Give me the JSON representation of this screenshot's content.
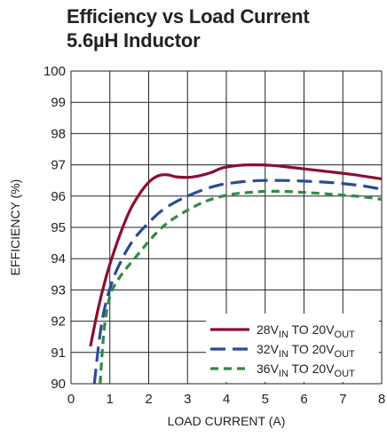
{
  "chart_data": {
    "type": "line",
    "title": "Efficiency vs Load Current",
    "subtitle": "5.6µH Inductor",
    "xlabel": "LOAD CURRENT (A)",
    "ylabel": "EFFICIENCY (%)",
    "xlim": [
      0,
      8
    ],
    "ylim": [
      90,
      100
    ],
    "xticks": [
      0,
      1,
      2,
      3,
      4,
      5,
      6,
      7,
      8
    ],
    "yticks": [
      90,
      91,
      92,
      93,
      94,
      95,
      96,
      97,
      98,
      99,
      100
    ],
    "grid": true,
    "legend_position": "bottom-right",
    "series": [
      {
        "name": "28V_IN TO 20V_OUT",
        "legend": {
          "a": "28V",
          "a_sub": "IN",
          "b": " TO 20V",
          "b_sub": "OUT"
        },
        "color": "#8b0f2e",
        "dash": "solid",
        "x": [
          0.5,
          0.7,
          0.9,
          1.1,
          1.3,
          1.5,
          1.7,
          1.9,
          2.1,
          2.3,
          2.5,
          2.7,
          3.0,
          3.3,
          3.6,
          3.9,
          4.3,
          4.7,
          5.2,
          5.8,
          6.5,
          7.2,
          8.0
        ],
        "y": [
          91.2,
          92.4,
          93.4,
          94.2,
          94.9,
          95.5,
          95.95,
          96.3,
          96.55,
          96.67,
          96.68,
          96.62,
          96.6,
          96.65,
          96.75,
          96.9,
          96.98,
          97.0,
          96.98,
          96.9,
          96.8,
          96.7,
          96.55
        ]
      },
      {
        "name": "32V_IN TO 20V_OUT",
        "legend": {
          "a": "32V",
          "a_sub": "IN",
          "b": " TO 20V",
          "b_sub": "OUT"
        },
        "color": "#2b4a9b",
        "dash": "long-dash",
        "x": [
          0.6,
          0.75,
          0.9,
          1.1,
          1.3,
          1.5,
          1.7,
          2.0,
          2.3,
          2.6,
          3.0,
          3.4,
          3.8,
          4.2,
          4.6,
          5.0,
          5.5,
          6.0,
          6.5,
          7.0,
          7.5,
          8.0
        ],
        "y": [
          90.0,
          91.6,
          92.6,
          93.4,
          93.95,
          94.4,
          94.75,
          95.15,
          95.5,
          95.75,
          96.0,
          96.2,
          96.35,
          96.43,
          96.48,
          96.5,
          96.5,
          96.48,
          96.45,
          96.4,
          96.33,
          96.22
        ]
      },
      {
        "name": "36V_IN TO 20V_OUT",
        "legend": {
          "a": "36V",
          "a_sub": "IN",
          "b": " TO 20V",
          "b_sub": "OUT"
        },
        "color": "#2f8a45",
        "dash": "short-dash",
        "x": [
          0.75,
          0.85,
          1.0,
          1.2,
          1.4,
          1.6,
          1.8,
          2.0,
          2.3,
          2.6,
          3.0,
          3.4,
          3.8,
          4.2,
          4.6,
          5.0,
          5.5,
          6.0,
          6.5,
          7.0,
          7.5,
          8.0
        ],
        "y": [
          90.0,
          91.7,
          92.8,
          93.3,
          93.65,
          93.95,
          94.25,
          94.55,
          94.95,
          95.25,
          95.55,
          95.8,
          95.97,
          96.07,
          96.12,
          96.15,
          96.15,
          96.12,
          96.08,
          96.03,
          95.98,
          95.9
        ]
      }
    ]
  }
}
